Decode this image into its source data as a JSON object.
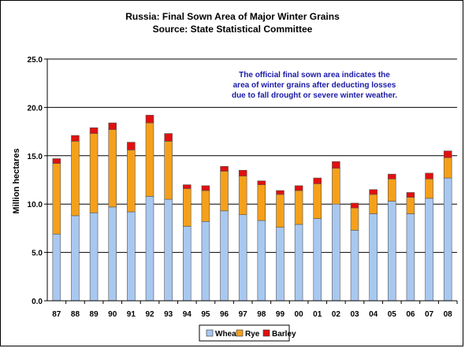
{
  "chart_data": {
    "type": "bar",
    "stacked": true,
    "title": "Russia:  Final Sown Area of Major Winter Grains",
    "subtitle": "Source:  State Statistical Committee",
    "annotation": [
      "The official final sown area indicates the",
      "area of winter grains after deducting losses",
      "due to fall drought or severe winter weather."
    ],
    "ylabel": "Million hectares",
    "xlabel": "",
    "ylim": [
      0,
      25
    ],
    "yticks": [
      "0.0",
      "5.0",
      "10.0",
      "15.0",
      "20.0",
      "25.0"
    ],
    "grid": true,
    "legend_position": "bottom",
    "categories": [
      "87",
      "88",
      "89",
      "90",
      "91",
      "92",
      "93",
      "94",
      "95",
      "96",
      "97",
      "98",
      "99",
      "00",
      "01",
      "02",
      "03",
      "04",
      "05",
      "06",
      "07",
      "08"
    ],
    "series": [
      {
        "name": "Wheat",
        "color": "#a8c8f0",
        "values": [
          6.9,
          8.8,
          9.1,
          9.7,
          9.2,
          10.8,
          10.5,
          7.7,
          8.2,
          9.3,
          8.9,
          8.3,
          7.6,
          7.9,
          8.5,
          10.0,
          7.3,
          9.0,
          10.3,
          9.0,
          10.6,
          12.7
        ]
      },
      {
        "name": "Rye",
        "color": "#f5a01a",
        "values": [
          7.3,
          7.7,
          8.2,
          8.0,
          6.4,
          7.6,
          6.0,
          3.9,
          3.2,
          4.1,
          4.0,
          3.7,
          3.4,
          3.5,
          3.6,
          3.7,
          2.3,
          2.0,
          2.3,
          1.7,
          2.0,
          2.1
        ]
      },
      {
        "name": "Barley",
        "color": "#e01010",
        "values": [
          0.5,
          0.6,
          0.6,
          0.7,
          0.8,
          0.8,
          0.8,
          0.4,
          0.5,
          0.5,
          0.6,
          0.4,
          0.4,
          0.5,
          0.6,
          0.7,
          0.5,
          0.5,
          0.5,
          0.5,
          0.6,
          0.7
        ]
      }
    ]
  }
}
